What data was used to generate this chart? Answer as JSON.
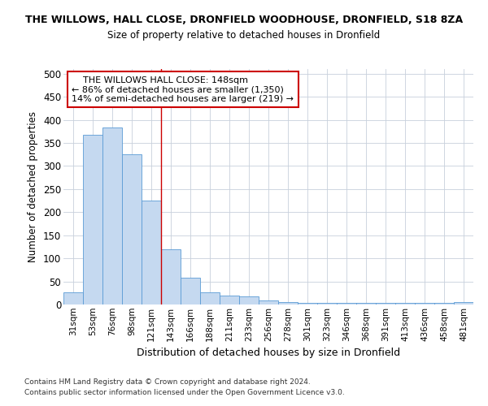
{
  "title": "THE WILLOWS, HALL CLOSE, DRONFIELD WOODHOUSE, DRONFIELD, S18 8ZA",
  "subtitle": "Size of property relative to detached houses in Dronfield",
  "xlabel": "Distribution of detached houses by size in Dronfield",
  "ylabel": "Number of detached properties",
  "footer1": "Contains HM Land Registry data © Crown copyright and database right 2024.",
  "footer2": "Contains public sector information licensed under the Open Government Licence v3.0.",
  "categories": [
    "31sqm",
    "53sqm",
    "76sqm",
    "98sqm",
    "121sqm",
    "143sqm",
    "166sqm",
    "188sqm",
    "211sqm",
    "233sqm",
    "256sqm",
    "278sqm",
    "301sqm",
    "323sqm",
    "346sqm",
    "368sqm",
    "391sqm",
    "413sqm",
    "436sqm",
    "458sqm",
    "481sqm"
  ],
  "values": [
    27,
    368,
    384,
    325,
    225,
    120,
    58,
    27,
    20,
    17,
    8,
    6,
    4,
    4,
    4,
    4,
    4,
    4,
    4,
    4,
    5
  ],
  "bar_color": "#c5d9f0",
  "bar_edge_color": "#5b9bd5",
  "grid_color": "#c8d0dc",
  "background_color": "#ffffff",
  "annotation_line1": "    THE WILLOWS HALL CLOSE: 148sqm",
  "annotation_line2": "← 86% of detached houses are smaller (1,350)",
  "annotation_line3": "14% of semi-detached houses are larger (219) →",
  "vline_color": "#cc0000",
  "annotation_box_color": "#cc0000",
  "ylim": [
    0,
    510
  ],
  "yticks": [
    0,
    50,
    100,
    150,
    200,
    250,
    300,
    350,
    400,
    450,
    500
  ]
}
